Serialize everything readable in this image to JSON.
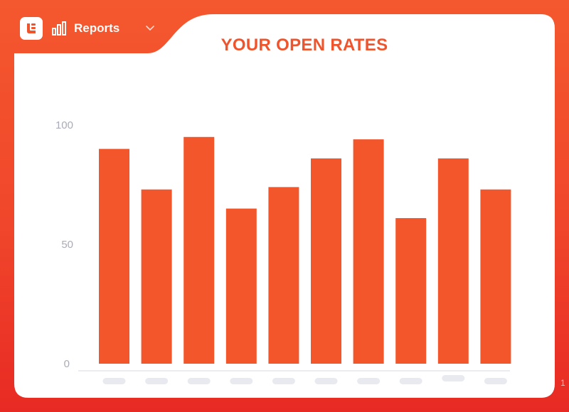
{
  "app": {
    "nav_label": "Reports"
  },
  "icons": {
    "logo": "logo-icon",
    "reports": "bar-chart-icon",
    "dropdown": "chevron-down-icon"
  },
  "colors": {
    "accent": "#f0542c",
    "bar": "#f4562c",
    "axis_text": "#a9abb8"
  },
  "edge_text": "1",
  "chart_data": {
    "type": "bar",
    "title": "YOUR OPEN RATES",
    "xlabel": "",
    "ylabel": "",
    "categories": [
      "",
      "",
      "",
      "",
      "",
      "",
      "",
      "",
      "",
      ""
    ],
    "values": [
      90,
      73,
      95,
      65,
      74,
      86,
      94,
      61,
      86,
      73
    ],
    "ylim": [
      0,
      100
    ],
    "yticks": [
      0,
      50,
      100
    ],
    "grid": false,
    "legend": "none"
  }
}
